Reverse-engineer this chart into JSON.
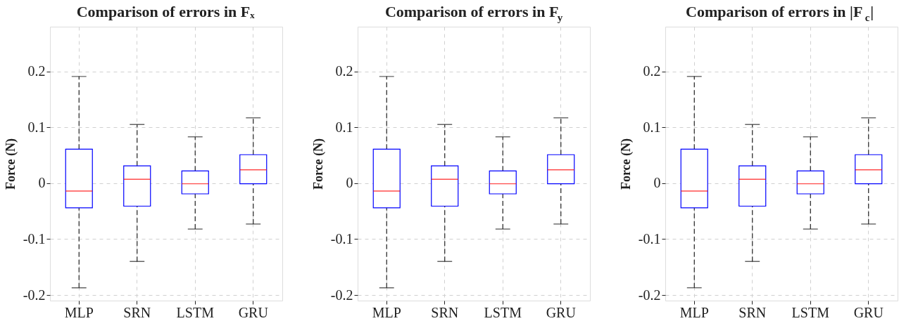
{
  "chart_data": [
    {
      "type": "box",
      "title": "Comparison of errors in Fₓ",
      "ylabel": "Force (N)",
      "categories": [
        "MLP",
        "SRN",
        "LSTM",
        "GRU"
      ],
      "ylim": [
        -0.21,
        0.28
      ],
      "yticks": [
        -0.2,
        -0.1,
        0,
        0.1,
        0.2
      ],
      "grid": true,
      "series": [
        {
          "color": "#0000ff",
          "line_style": "dashed",
          "boxes": [
            {
              "low": -0.187,
              "q1": -0.044,
              "median": -0.014,
              "q3": 0.061,
              "high": 0.191
            },
            {
              "low": -0.14,
              "q1": -0.041,
              "median": 0.007,
              "q3": 0.031,
              "high": 0.105
            },
            {
              "low": -0.082,
              "q1": -0.019,
              "median": -0.001,
              "q3": 0.022,
              "high": 0.083
            },
            {
              "low": -0.073,
              "q1": -0.001,
              "median": 0.024,
              "q3": 0.051,
              "high": 0.117
            }
          ]
        }
      ]
    },
    {
      "type": "box",
      "title": "Comparison of errors in F$_{y}$",
      "ylabel": "Force (N)",
      "categories": [
        "MLP",
        "SRN",
        "LSTM",
        "GRU"
      ],
      "ylim": [
        -0.21,
        0.28
      ],
      "yticks": [
        -0.2,
        -0.1,
        0,
        0.1,
        0.2
      ],
      "grid": true,
      "series": [
        {
          "color": "#0000ff",
          "line_style": "dashed",
          "boxes": [
            {
              "low": -0.187,
              "q1": -0.044,
              "median": -0.014,
              "q3": 0.061,
              "high": 0.191
            },
            {
              "low": -0.14,
              "q1": -0.041,
              "median": 0.007,
              "q3": 0.031,
              "high": 0.105
            },
            {
              "low": -0.082,
              "q1": -0.019,
              "median": -0.001,
              "q3": 0.022,
              "high": 0.083
            },
            {
              "low": -0.073,
              "q1": -0.001,
              "median": 0.024,
              "q3": 0.051,
              "high": 0.117
            }
          ]
        }
      ]
    },
    {
      "type": "box",
      "title": "Comparison of errors in |F$_{c}$|",
      "ylabel": "Force (N)",
      "categories": [
        "MLP",
        "SRN",
        "LSTM",
        "GRU"
      ],
      "ylim": [
        -0.21,
        0.28
      ],
      "yticks": [
        -0.2,
        -0.1,
        0,
        0.1,
        0.2
      ],
      "grid": true,
      "series": [
        {
          "color": "#0000ff",
          "line_style": "dashed",
          "boxes": [
            {
              "low": -0.187,
              "q1": -0.044,
              "median": -0.014,
              "q3": 0.061,
              "high": 0.191
            },
            {
              "low": -0.14,
              "q1": -0.041,
              "median": 0.007,
              "q3": 0.031,
              "high": 0.105
            },
            {
              "low": -0.082,
              "q1": -0.019,
              "median": -0.001,
              "q3": 0.022,
              "high": 0.083
            },
            {
              "low": -0.073,
              "q1": -0.001,
              "median": 0.024,
              "q3": 0.051,
              "high": 0.117
            }
          ]
        }
      ]
    }
  ]
}
